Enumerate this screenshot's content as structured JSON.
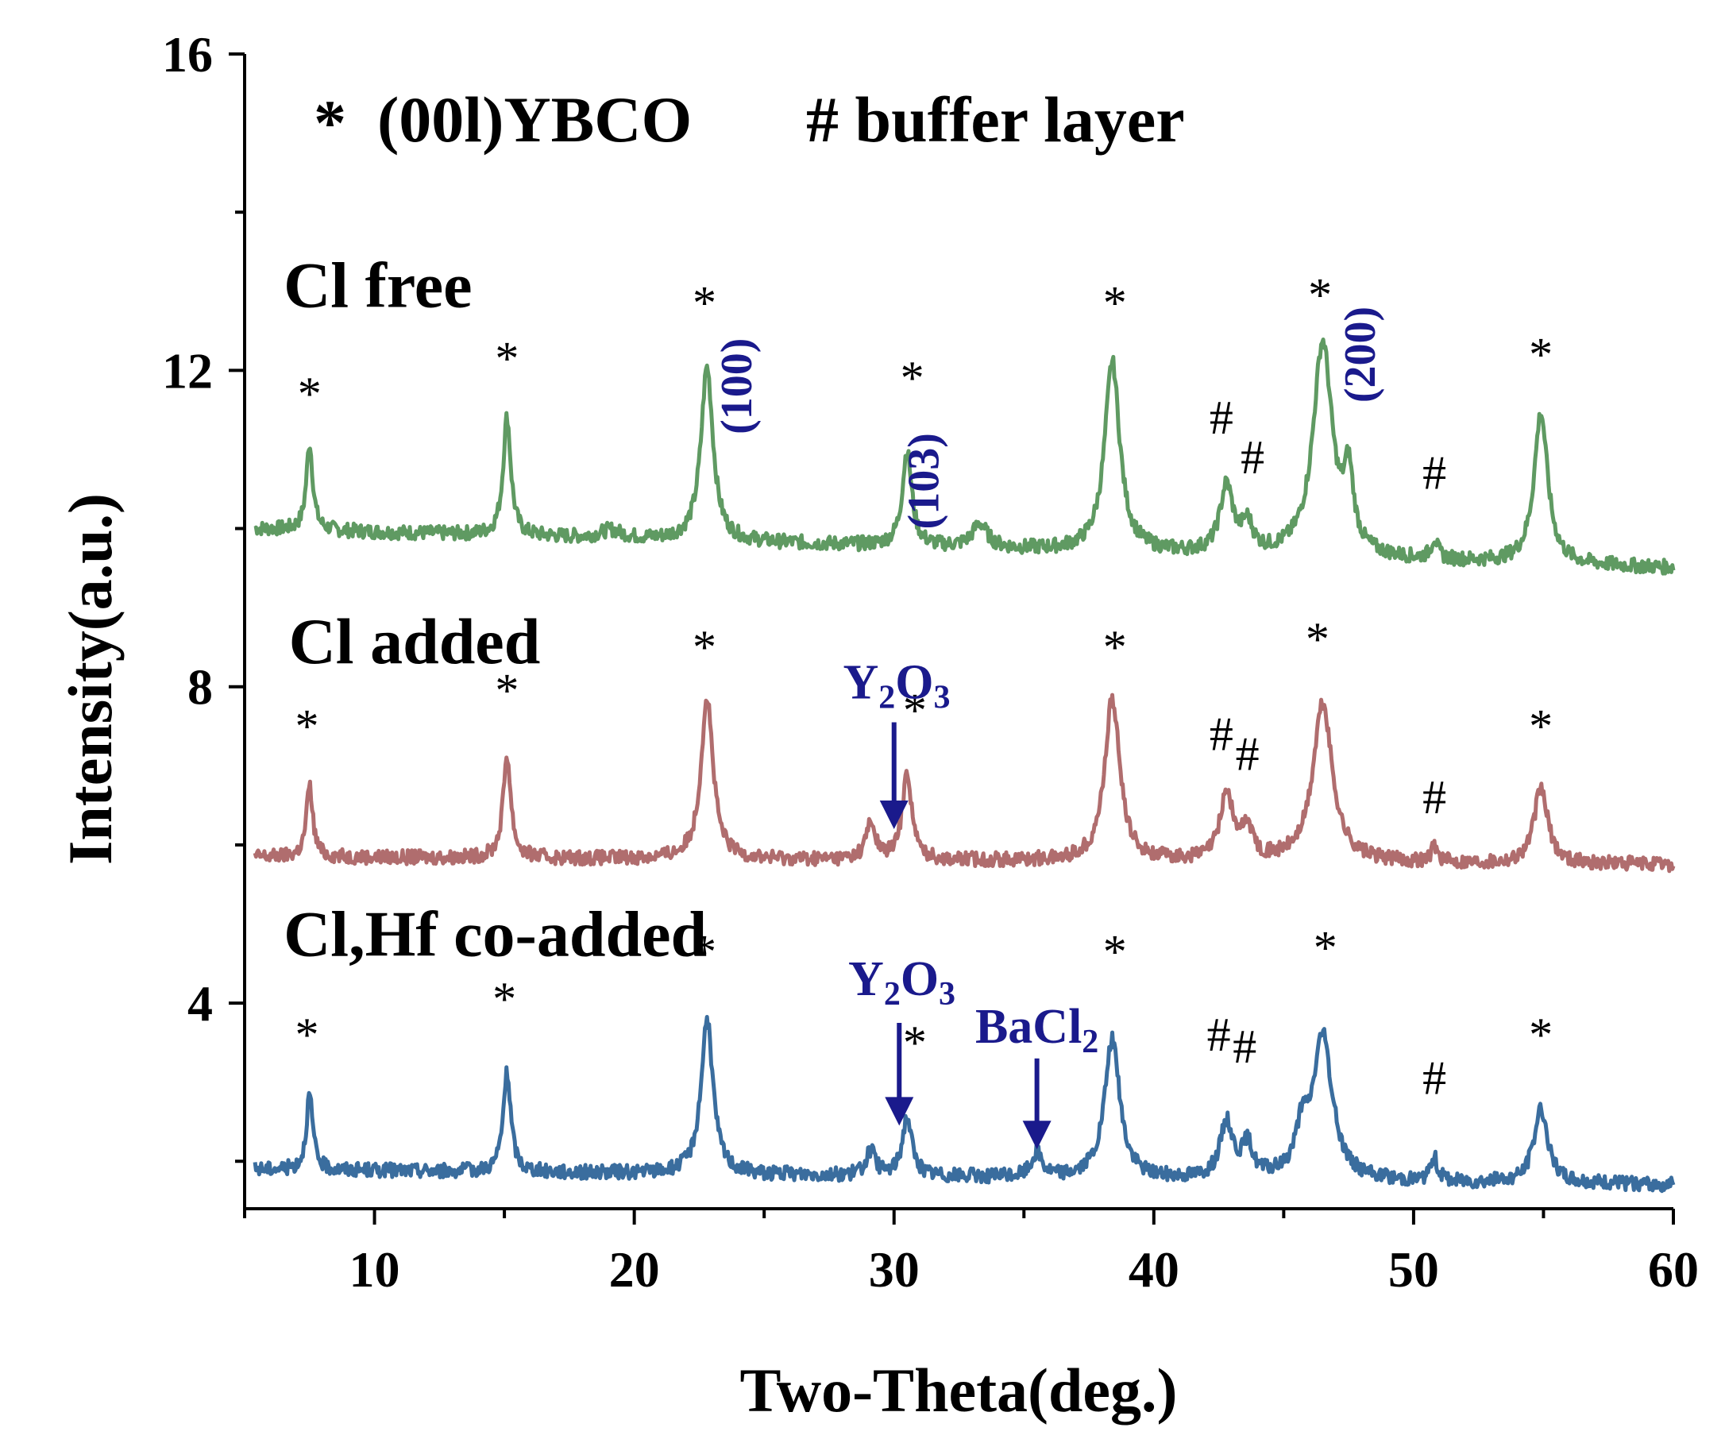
{
  "chart_data": {
    "type": "line",
    "xlabel": "Two-Theta(deg.)",
    "ylabel": "Intensity(a.u.)",
    "xlim": [
      5,
      60
    ],
    "ylim": [
      1.4,
      16
    ],
    "xticks": [
      10,
      20,
      30,
      40,
      50,
      60
    ],
    "yticks": [
      4,
      8,
      12,
      16
    ],
    "legend": {
      "ybco_symbol": "*",
      "ybco_text": "(00l)YBCO",
      "buffer_text": "# buffer layer"
    },
    "series": [
      {
        "name": "Cl free",
        "color": "#5f9a62",
        "baseline": 10.0,
        "end_baseline": 9.5,
        "peaks": [
          {
            "x": 7.5,
            "height": 1.1,
            "width": 0.15
          },
          {
            "x": 15.1,
            "height": 1.5,
            "width": 0.18
          },
          {
            "x": 19.1,
            "height": 0.1,
            "width": 0.5
          },
          {
            "x": 22.8,
            "height": 2.2,
            "width": 0.28
          },
          {
            "x": 30.5,
            "height": 1.2,
            "width": 0.22
          },
          {
            "x": 33.3,
            "height": 0.3,
            "width": 0.35
          },
          {
            "x": 38.4,
            "height": 2.4,
            "width": 0.35
          },
          {
            "x": 42.8,
            "height": 0.85,
            "width": 0.3
          },
          {
            "x": 43.6,
            "height": 0.35,
            "width": 0.25
          },
          {
            "x": 46.5,
            "height": 2.7,
            "width": 0.45
          },
          {
            "x": 47.5,
            "height": 0.9,
            "width": 0.22
          },
          {
            "x": 50.8,
            "height": 0.25,
            "width": 0.15
          },
          {
            "x": 54.9,
            "height": 1.9,
            "width": 0.32
          }
        ]
      },
      {
        "name": "Cl added",
        "color": "#b06d6e",
        "baseline": 5.85,
        "end_baseline": 5.75,
        "peaks": [
          {
            "x": 7.5,
            "height": 0.9,
            "width": 0.15
          },
          {
            "x": 15.1,
            "height": 1.3,
            "width": 0.18
          },
          {
            "x": 22.8,
            "height": 2.05,
            "width": 0.28
          },
          {
            "x": 29.1,
            "height": 0.45,
            "width": 0.22
          },
          {
            "x": 30.5,
            "height": 1.1,
            "width": 0.22
          },
          {
            "x": 38.4,
            "height": 2.05,
            "width": 0.35
          },
          {
            "x": 42.8,
            "height": 0.85,
            "width": 0.3
          },
          {
            "x": 43.6,
            "height": 0.4,
            "width": 0.25
          },
          {
            "x": 46.5,
            "height": 2.0,
            "width": 0.45
          },
          {
            "x": 50.8,
            "height": 0.2,
            "width": 0.15
          },
          {
            "x": 54.9,
            "height": 0.95,
            "width": 0.32
          }
        ]
      },
      {
        "name": "Cl,Hf co-added",
        "color": "#3a6d9e",
        "baseline": 1.9,
        "end_baseline": 1.7,
        "peaks": [
          {
            "x": 7.5,
            "height": 0.95,
            "width": 0.15
          },
          {
            "x": 15.1,
            "height": 1.25,
            "width": 0.18
          },
          {
            "x": 22.8,
            "height": 1.95,
            "width": 0.28
          },
          {
            "x": 29.1,
            "height": 0.3,
            "width": 0.22
          },
          {
            "x": 30.5,
            "height": 0.75,
            "width": 0.22
          },
          {
            "x": 35.5,
            "height": 0.3,
            "width": 0.25
          },
          {
            "x": 38.4,
            "height": 1.75,
            "width": 0.35
          },
          {
            "x": 42.8,
            "height": 0.7,
            "width": 0.3
          },
          {
            "x": 43.6,
            "height": 0.4,
            "width": 0.25
          },
          {
            "x": 45.7,
            "height": 0.5,
            "width": 0.3
          },
          {
            "x": 46.5,
            "height": 1.8,
            "width": 0.45
          },
          {
            "x": 50.8,
            "height": 0.3,
            "width": 0.15
          },
          {
            "x": 54.9,
            "height": 0.95,
            "width": 0.32
          }
        ]
      }
    ],
    "series_labels": [
      {
        "text": "Cl free",
        "x": 6.5,
        "y": 12.8
      },
      {
        "text": "Cl added",
        "x": 6.7,
        "y": 8.3
      },
      {
        "text": "Cl,Hf co-added",
        "x": 6.5,
        "y": 4.6
      }
    ],
    "markers": [
      {
        "symbol": "*",
        "x": 7.5,
        "y": 11.5
      },
      {
        "symbol": "*",
        "x": 15.1,
        "y": 11.95
      },
      {
        "symbol": "*",
        "x": 22.7,
        "y": 12.65
      },
      {
        "symbol": "*",
        "x": 30.7,
        "y": 11.7
      },
      {
        "symbol": "*",
        "x": 38.5,
        "y": 12.65
      },
      {
        "symbol": "#",
        "x": 42.6,
        "y": 11.2
      },
      {
        "symbol": "#",
        "x": 43.8,
        "y": 10.7
      },
      {
        "symbol": "*",
        "x": 46.4,
        "y": 12.75
      },
      {
        "symbol": "#",
        "x": 50.8,
        "y": 10.5
      },
      {
        "symbol": "*",
        "x": 54.9,
        "y": 12.0
      },
      {
        "symbol": "*",
        "x": 7.4,
        "y": 7.3
      },
      {
        "symbol": "*",
        "x": 15.1,
        "y": 7.75
      },
      {
        "symbol": "*",
        "x": 22.7,
        "y": 8.3
      },
      {
        "symbol": "*",
        "x": 30.8,
        "y": 7.5
      },
      {
        "symbol": "*",
        "x": 38.5,
        "y": 8.3
      },
      {
        "symbol": "#",
        "x": 42.6,
        "y": 7.2
      },
      {
        "symbol": "#",
        "x": 43.6,
        "y": 6.95
      },
      {
        "symbol": "*",
        "x": 46.3,
        "y": 8.4
      },
      {
        "symbol": "#",
        "x": 50.8,
        "y": 6.4
      },
      {
        "symbol": "*",
        "x": 54.9,
        "y": 7.3
      },
      {
        "symbol": "*",
        "x": 7.4,
        "y": 3.4
      },
      {
        "symbol": "*",
        "x": 15.0,
        "y": 3.85
      },
      {
        "symbol": "*",
        "x": 22.7,
        "y": 4.45
      },
      {
        "symbol": "*",
        "x": 30.8,
        "y": 3.3
      },
      {
        "symbol": "*",
        "x": 38.5,
        "y": 4.45
      },
      {
        "symbol": "#",
        "x": 42.5,
        "y": 3.4
      },
      {
        "symbol": "#",
        "x": 43.5,
        "y": 3.25
      },
      {
        "symbol": "*",
        "x": 46.6,
        "y": 4.5
      },
      {
        "symbol": "#",
        "x": 50.8,
        "y": 2.85
      },
      {
        "symbol": "*",
        "x": 54.9,
        "y": 3.4
      }
    ],
    "phase_annotations": [
      {
        "main": "Y",
        "sub": "2",
        "main2": "O",
        "sub2": "3",
        "x": 30.1,
        "label_y": 7.85,
        "arrow_from": 7.55,
        "arrow_to": 6.2
      },
      {
        "main": "Y",
        "sub": "2",
        "main2": "O",
        "sub2": "3",
        "x": 30.3,
        "label_y": 4.1,
        "arrow_from": 3.75,
        "arrow_to": 2.45
      },
      {
        "main": "BaCl",
        "sub": "2",
        "main2": "",
        "sub2": "",
        "x": 35.5,
        "label_y": 3.5,
        "arrow_from": 3.3,
        "arrow_to": 2.15
      }
    ],
    "miller_labels": [
      {
        "text": "(100)",
        "x": 24.5,
        "y": 11.8
      },
      {
        "text": "(103)",
        "x": 31.7,
        "y": 10.6
      },
      {
        "text": "(200)",
        "x": 48.5,
        "y": 12.2
      }
    ],
    "annotation_color": "#1a1a8c"
  }
}
